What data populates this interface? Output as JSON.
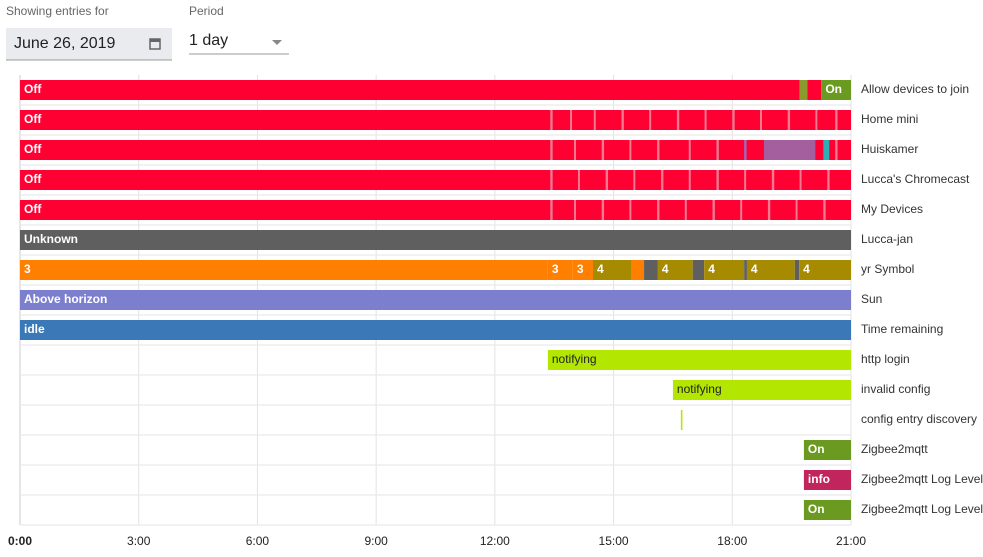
{
  "controls": {
    "date_label": "Showing entries for",
    "date": "June 26, 2019",
    "period_label": "Period",
    "period": "1 day"
  },
  "timeline": {
    "xlim": [
      0,
      21
    ],
    "xticks": [
      {
        "value": 0,
        "label": "0:00"
      },
      {
        "value": 3,
        "label": "3:00"
      },
      {
        "value": 6,
        "label": "6:00"
      },
      {
        "value": 9,
        "label": "9:00"
      },
      {
        "value": 12,
        "label": "12:00"
      },
      {
        "value": 15,
        "label": "15:00"
      },
      {
        "value": 18,
        "label": "18:00"
      },
      {
        "value": 21,
        "label": "21:00"
      }
    ],
    "rows": [
      {
        "name": "Allow devices to join",
        "segments": [
          {
            "start": 0,
            "end": 19.7,
            "color": "#ff0033",
            "label": "Off"
          },
          {
            "start": 19.7,
            "end": 19.9,
            "color": "#8a9a2f"
          },
          {
            "start": 19.9,
            "end": 20.25,
            "color": "#ff0033"
          },
          {
            "start": 20.25,
            "end": 21,
            "color": "#6a9a1f",
            "label": "On"
          }
        ]
      },
      {
        "name": "Home mini",
        "segments": [
          {
            "start": 0,
            "end": 21,
            "color": "#ff0033",
            "label": "Off"
          },
          {
            "start": 13.4,
            "end": 13.46,
            "color": "#f07a90"
          },
          {
            "start": 13.9,
            "end": 13.95,
            "color": "#f07a90"
          },
          {
            "start": 14.5,
            "end": 14.55,
            "color": "#f07a90"
          },
          {
            "start": 15.2,
            "end": 15.26,
            "color": "#f07a90"
          },
          {
            "start": 15.9,
            "end": 15.95,
            "color": "#f07a90"
          },
          {
            "start": 16.6,
            "end": 16.66,
            "color": "#f07a90"
          },
          {
            "start": 17.3,
            "end": 17.35,
            "color": "#f07a90"
          },
          {
            "start": 18.0,
            "end": 18.06,
            "color": "#f07a90"
          },
          {
            "start": 18.7,
            "end": 18.75,
            "color": "#f07a90"
          },
          {
            "start": 19.4,
            "end": 19.46,
            "color": "#f07a90"
          },
          {
            "start": 20.1,
            "end": 20.15,
            "color": "#f07a90"
          },
          {
            "start": 20.6,
            "end": 20.66,
            "color": "#f07a90"
          }
        ]
      },
      {
        "name": "Huiskamer",
        "segments": [
          {
            "start": 0,
            "end": 21,
            "color": "#ff0033",
            "label": "Off"
          },
          {
            "start": 13.4,
            "end": 13.46,
            "color": "#f07a90"
          },
          {
            "start": 14.0,
            "end": 14.05,
            "color": "#f07a90"
          },
          {
            "start": 14.7,
            "end": 14.76,
            "color": "#f07a90"
          },
          {
            "start": 15.4,
            "end": 15.45,
            "color": "#f07a90"
          },
          {
            "start": 16.1,
            "end": 16.16,
            "color": "#f07a90"
          },
          {
            "start": 16.9,
            "end": 16.95,
            "color": "#f07a90"
          },
          {
            "start": 17.6,
            "end": 17.66,
            "color": "#f07a90"
          },
          {
            "start": 18.3,
            "end": 18.36,
            "color": "#9b6ac0"
          },
          {
            "start": 18.8,
            "end": 20.1,
            "color": "#a45f9f"
          },
          {
            "start": 20.3,
            "end": 20.45,
            "color": "#2bb0b8"
          },
          {
            "start": 20.6,
            "end": 20.66,
            "color": "#f07a90"
          }
        ]
      },
      {
        "name": "Lucca's Chromecast",
        "segments": [
          {
            "start": 0,
            "end": 21,
            "color": "#ff0033",
            "label": "Off"
          },
          {
            "start": 13.4,
            "end": 13.46,
            "color": "#f07a90"
          },
          {
            "start": 14.1,
            "end": 14.15,
            "color": "#f07a90"
          },
          {
            "start": 14.8,
            "end": 14.86,
            "color": "#f07a90"
          },
          {
            "start": 15.5,
            "end": 15.55,
            "color": "#f07a90"
          },
          {
            "start": 16.2,
            "end": 16.26,
            "color": "#f07a90"
          },
          {
            "start": 16.9,
            "end": 16.95,
            "color": "#f07a90"
          },
          {
            "start": 17.6,
            "end": 17.66,
            "color": "#f07a90"
          },
          {
            "start": 18.3,
            "end": 18.35,
            "color": "#f07a90"
          },
          {
            "start": 19.0,
            "end": 19.06,
            "color": "#f07a90"
          },
          {
            "start": 19.7,
            "end": 19.75,
            "color": "#f07a90"
          },
          {
            "start": 20.4,
            "end": 20.46,
            "color": "#f07a90"
          }
        ]
      },
      {
        "name": "My Devices",
        "segments": [
          {
            "start": 0,
            "end": 21,
            "color": "#ff0033",
            "label": "Off"
          },
          {
            "start": 13.4,
            "end": 13.46,
            "color": "#f07a90"
          },
          {
            "start": 14.0,
            "end": 14.05,
            "color": "#f07a90"
          },
          {
            "start": 14.7,
            "end": 14.76,
            "color": "#f07a90"
          },
          {
            "start": 15.4,
            "end": 15.45,
            "color": "#f07a90"
          },
          {
            "start": 16.1,
            "end": 16.16,
            "color": "#f07a90"
          },
          {
            "start": 16.8,
            "end": 16.85,
            "color": "#f07a90"
          },
          {
            "start": 17.5,
            "end": 17.56,
            "color": "#f07a90"
          },
          {
            "start": 18.2,
            "end": 18.25,
            "color": "#f07a90"
          },
          {
            "start": 18.9,
            "end": 18.96,
            "color": "#f07a90"
          },
          {
            "start": 19.6,
            "end": 19.65,
            "color": "#f07a90"
          },
          {
            "start": 20.3,
            "end": 20.36,
            "color": "#f07a90"
          }
        ]
      },
      {
        "name": "Lucca-jan",
        "segments": [
          {
            "start": 0,
            "end": 21,
            "color": "#5f5f5f",
            "label": "Unknown"
          }
        ]
      },
      {
        "name": "yr Symbol",
        "segments": [
          {
            "start": 0,
            "end": 13.34,
            "color": "#ff7f00",
            "label": "3"
          },
          {
            "start": 13.34,
            "end": 13.97,
            "color": "#ff7f00",
            "label": "3"
          },
          {
            "start": 13.97,
            "end": 14.48,
            "color": "#ff7f00",
            "label": "3"
          },
          {
            "start": 14.48,
            "end": 15.46,
            "color": "#a68b00",
            "label": "4"
          },
          {
            "start": 15.46,
            "end": 15.77,
            "color": "#ff7f00"
          },
          {
            "start": 15.77,
            "end": 16.12,
            "color": "#5f5f5f"
          },
          {
            "start": 16.12,
            "end": 17.0,
            "color": "#a68b00",
            "label": "4"
          },
          {
            "start": 17.0,
            "end": 17.29,
            "color": "#5f5f5f"
          },
          {
            "start": 17.29,
            "end": 18.3,
            "color": "#a68b00",
            "label": "4"
          },
          {
            "start": 18.3,
            "end": 18.37,
            "color": "#5f5f5f"
          },
          {
            "start": 18.37,
            "end": 19.58,
            "color": "#a68b00",
            "label": "4"
          },
          {
            "start": 19.58,
            "end": 19.69,
            "color": "#5f5f5f"
          },
          {
            "start": 19.69,
            "end": 21,
            "color": "#a68b00",
            "label": "4"
          }
        ]
      },
      {
        "name": "Sun",
        "segments": [
          {
            "start": 0,
            "end": 21,
            "color": "#7b7fce",
            "label": "Above horizon"
          }
        ]
      },
      {
        "name": "Time remaining",
        "segments": [
          {
            "start": 0,
            "end": 21,
            "color": "#3a78b8",
            "label": "idle"
          }
        ]
      },
      {
        "name": "http login",
        "segments": [
          {
            "start": 13.34,
            "end": 21,
            "color": "#b3e600",
            "label": "notifying"
          }
        ]
      },
      {
        "name": "invalid config",
        "segments": [
          {
            "start": 16.5,
            "end": 21,
            "color": "#b3e600",
            "label": "notifying"
          }
        ]
      },
      {
        "name": "config entry discovery",
        "segments": [
          {
            "start": 16.7,
            "end": 16.74,
            "color": "#b3e600"
          }
        ]
      },
      {
        "name": "Zigbee2mqtt",
        "segments": [
          {
            "start": 19.81,
            "end": 21,
            "color": "#6a9a1f",
            "label": "On"
          }
        ]
      },
      {
        "name": "Zigbee2mqtt Log Level",
        "segments": [
          {
            "start": 19.81,
            "end": 21,
            "color": "#c2255c",
            "label": "info"
          }
        ]
      },
      {
        "name": "Zigbee2mqtt Log Level",
        "segments": [
          {
            "start": 19.81,
            "end": 21,
            "color": "#6a9a1f",
            "label": "On"
          }
        ]
      }
    ]
  }
}
